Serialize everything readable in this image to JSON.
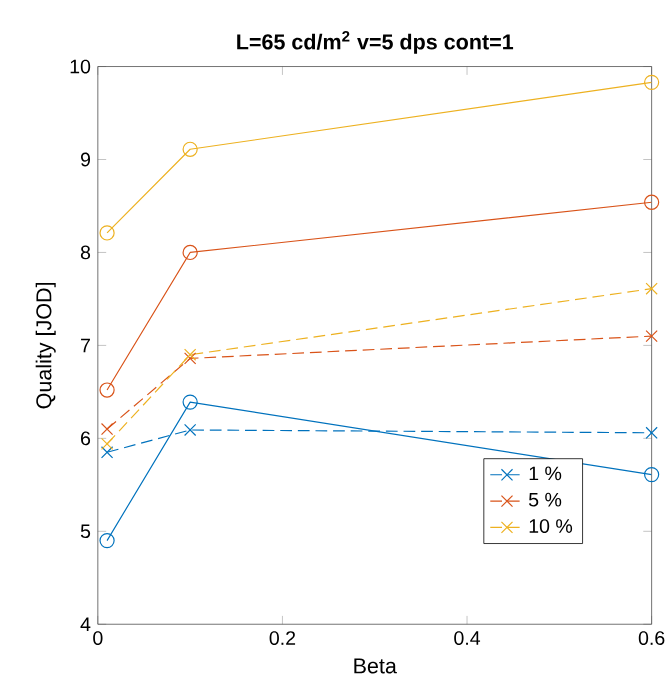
{
  "chart_data": {
    "type": "line",
    "title": "L=65 cd/m$^{2}$  v=5 dps  cont=1",
    "xlabel": "Beta",
    "ylabel": "Quality [JOD]",
    "x": [
      0.01,
      0.1,
      0.6
    ],
    "series": [
      {
        "name": "1 %",
        "color": "#0072bd",
        "marker": "cross",
        "line_style": "dashed",
        "values": [
          5.85,
          6.09,
          6.06
        ]
      },
      {
        "name": "5 %",
        "color": "#d95319",
        "marker": "cross",
        "line_style": "dashed",
        "values": [
          6.1,
          6.86,
          7.1
        ]
      },
      {
        "name": "10 %",
        "color": "#edb120",
        "marker": "cross",
        "line_style": "dashed",
        "values": [
          5.94,
          6.9,
          7.61
        ]
      },
      {
        "color": "#0072bd",
        "marker": "circle",
        "line_style": "solid",
        "values": [
          4.9,
          6.39,
          5.61
        ]
      },
      {
        "color": "#d95319",
        "marker": "circle",
        "line_style": "solid",
        "values": [
          6.52,
          8.0,
          8.54
        ]
      },
      {
        "color": "#edb120",
        "marker": "circle",
        "line_style": "solid",
        "values": [
          8.21,
          9.11,
          9.83
        ]
      }
    ],
    "xlim": [
      0,
      0.6
    ],
    "xticks": [
      0,
      0.2,
      0.4,
      0.6
    ],
    "ylim": [
      4,
      10
    ],
    "yticks": [
      4,
      5,
      6,
      7,
      8,
      9,
      10
    ],
    "grid": false,
    "legend": "bottom right"
  }
}
